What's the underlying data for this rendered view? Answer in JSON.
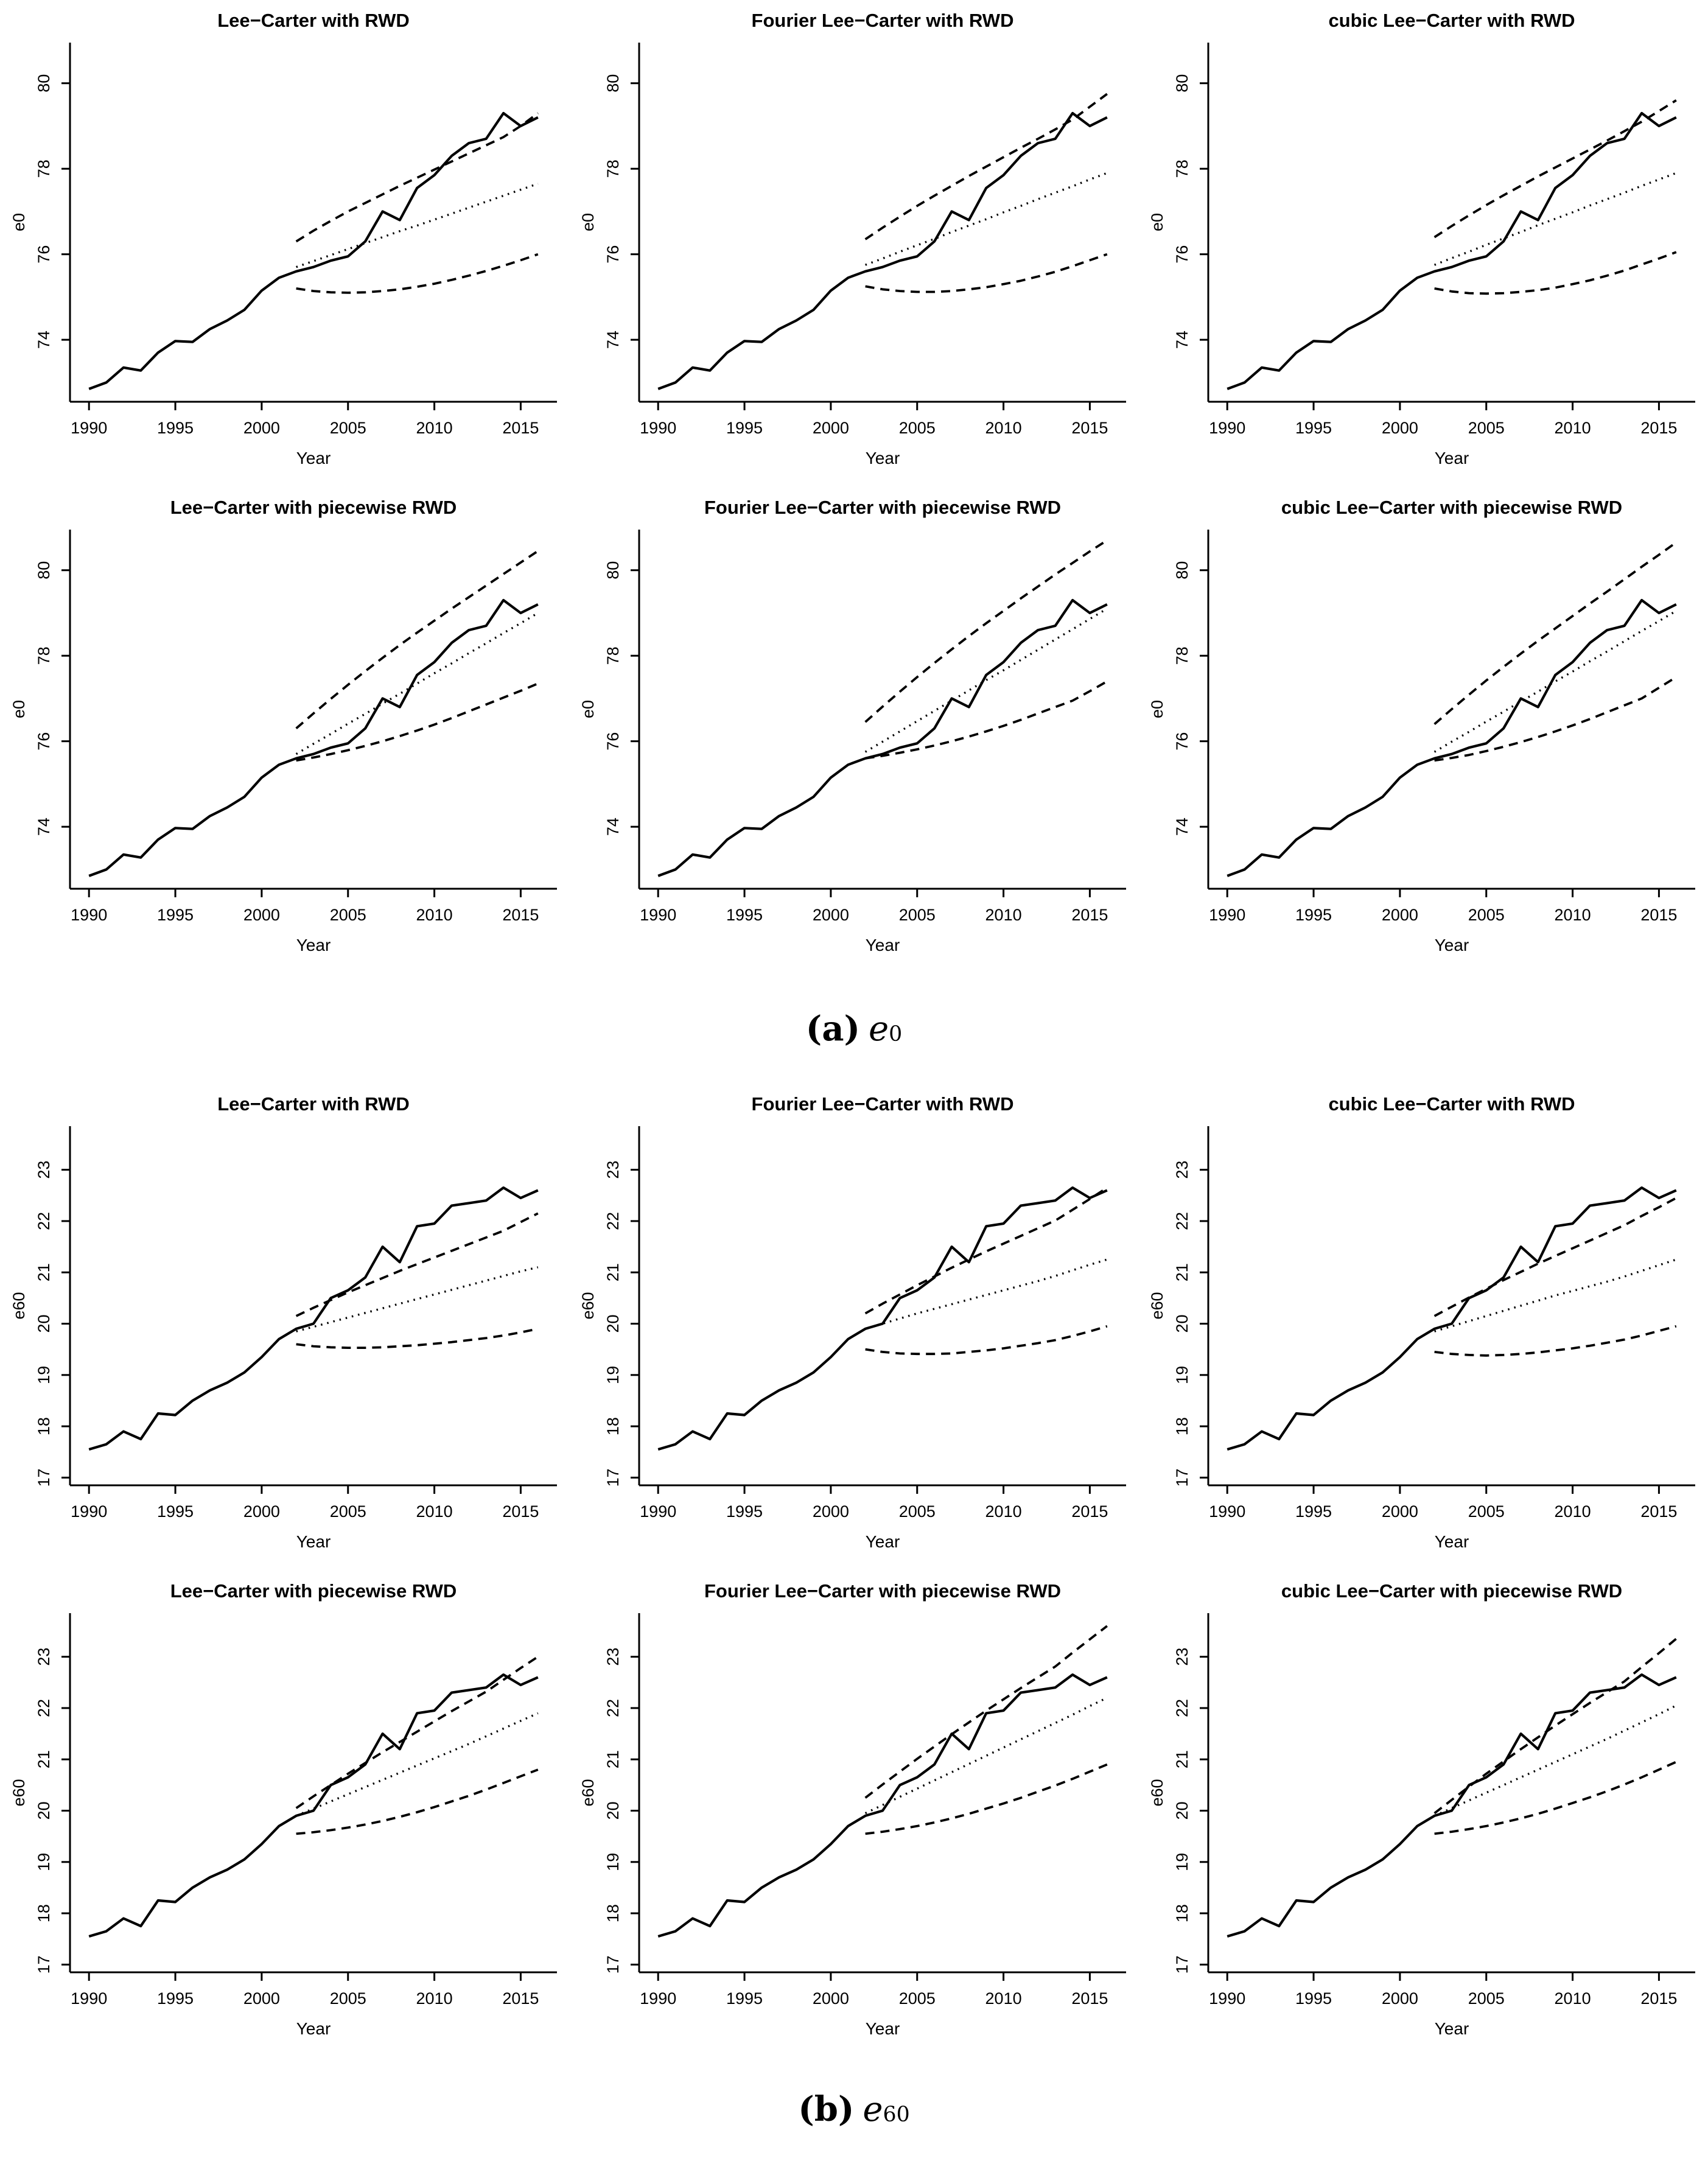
{
  "page": {
    "background": "#ffffff",
    "ink": "#000000"
  },
  "captions": {
    "a": {
      "label": "(a)",
      "symbol": "e",
      "subscript": "0"
    },
    "b": {
      "label": "(b)",
      "symbol": "e",
      "subscript": "60"
    }
  },
  "chart_data": {
    "type": "line",
    "xlabel": "Year",
    "x_ticks": [
      1990,
      1995,
      2000,
      2005,
      2010,
      2015
    ],
    "xlim": [
      1988.9,
      2017.1
    ],
    "grid": "off",
    "legend": "none",
    "line_styles": {
      "observed": "solid",
      "forecast_mean": "dotted",
      "forecast_interval": "dashed"
    },
    "observed_years": [
      1990,
      1991,
      1992,
      1993,
      1994,
      1995,
      1996,
      1997,
      1998,
      1999,
      2000,
      2001,
      2002,
      2003,
      2004,
      2005,
      2006,
      2007,
      2008,
      2009,
      2010,
      2011,
      2012,
      2013,
      2014,
      2015,
      2016
    ],
    "forecast_years": [
      2002,
      2003,
      2004,
      2005,
      2006,
      2007,
      2008,
      2009,
      2010,
      2011,
      2012,
      2013,
      2014,
      2015,
      2016
    ],
    "groups": [
      {
        "name": "e0",
        "ylabel": "e0",
        "ylim": [
          72.55,
          80.95
        ],
        "y_ticks": [
          74,
          76,
          78,
          80
        ],
        "observed": [
          72.85,
          73.0,
          73.35,
          73.28,
          73.7,
          73.97,
          73.95,
          74.25,
          74.45,
          74.7,
          75.15,
          75.45,
          75.6,
          75.7,
          75.85,
          75.95,
          76.3,
          77.0,
          76.8,
          77.55,
          77.85,
          78.3,
          78.6,
          78.7,
          79.3,
          79.0,
          79.2
        ],
        "charts": [
          {
            "title": "Lee−Carter with RWD",
            "forecast_mean": [
              75.7,
              75.84,
              75.98,
              76.12,
              76.26,
              76.4,
              76.54,
              76.67,
              76.81,
              76.95,
              77.09,
              77.23,
              77.37,
              77.51,
              77.65
            ],
            "forecast_upper": [
              76.3,
              76.55,
              76.78,
              77.0,
              77.2,
              77.4,
              77.6,
              77.79,
              77.98,
              78.17,
              78.36,
              78.55,
              78.74,
              79.0,
              79.3
            ],
            "forecast_lower": [
              75.2,
              75.14,
              75.11,
              75.1,
              75.11,
              75.14,
              75.18,
              75.24,
              75.31,
              75.4,
              75.5,
              75.61,
              75.73,
              75.86,
              76.0
            ]
          },
          {
            "title": "Fourier Lee−Carter with RWD",
            "forecast_mean": [
              75.75,
              75.9,
              76.06,
              76.21,
              76.36,
              76.52,
              76.67,
              76.82,
              76.98,
              77.13,
              77.29,
              77.44,
              77.59,
              77.75,
              77.9
            ],
            "forecast_upper": [
              76.35,
              76.62,
              76.88,
              77.13,
              77.37,
              77.6,
              77.83,
              78.05,
              78.27,
              78.49,
              78.7,
              78.92,
              79.15,
              79.45,
              79.75
            ],
            "forecast_lower": [
              75.25,
              75.18,
              75.14,
              75.12,
              75.12,
              75.14,
              75.18,
              75.23,
              75.3,
              75.38,
              75.48,
              75.59,
              75.72,
              75.86,
              76.0
            ]
          },
          {
            "title": "cubic Lee−Carter with RWD",
            "forecast_mean": [
              75.75,
              75.91,
              76.06,
              76.22,
              76.37,
              76.52,
              76.68,
              76.83,
              76.98,
              77.14,
              77.29,
              77.44,
              77.6,
              77.75,
              77.9
            ],
            "forecast_upper": [
              76.4,
              76.66,
              76.91,
              77.15,
              77.38,
              77.6,
              77.82,
              78.03,
              78.24,
              78.45,
              78.66,
              78.88,
              79.1,
              79.35,
              79.6
            ],
            "forecast_lower": [
              75.2,
              75.13,
              75.09,
              75.08,
              75.09,
              75.12,
              75.16,
              75.22,
              75.3,
              75.39,
              75.5,
              75.62,
              75.76,
              75.9,
              76.05
            ]
          },
          {
            "title": "Lee−Carter with piecewise RWD",
            "forecast_mean": [
              75.7,
              75.94,
              76.17,
              76.41,
              76.64,
              76.88,
              77.11,
              77.35,
              77.59,
              77.82,
              78.06,
              78.29,
              78.53,
              78.76,
              79.0
            ],
            "forecast_upper": [
              76.3,
              76.65,
              76.99,
              77.32,
              77.64,
              77.95,
              78.25,
              78.54,
              78.82,
              79.1,
              79.37,
              79.64,
              79.91,
              80.18,
              80.45
            ],
            "forecast_lower": [
              75.55,
              75.62,
              75.7,
              75.79,
              75.89,
              76.0,
              76.12,
              76.25,
              76.39,
              76.54,
              76.7,
              76.86,
              77.02,
              77.18,
              77.35
            ]
          },
          {
            "title": "Fourier Lee−Carter with piecewise RWD",
            "forecast_mean": [
              75.75,
              75.99,
              76.23,
              76.47,
              76.71,
              76.95,
              77.19,
              77.43,
              77.66,
              77.9,
              78.14,
              78.38,
              78.62,
              78.86,
              79.1
            ],
            "forecast_upper": [
              76.45,
              76.81,
              77.16,
              77.5,
              77.83,
              78.15,
              78.46,
              78.76,
              79.05,
              79.34,
              79.62,
              79.9,
              80.17,
              80.44,
              80.7
            ],
            "forecast_lower": [
              75.6,
              75.66,
              75.73,
              75.81,
              75.9,
              76.0,
              76.11,
              76.23,
              76.36,
              76.5,
              76.65,
              76.8,
              76.95,
              77.17,
              77.4
            ]
          },
          {
            "title": "cubic Lee−Carter with piecewise RWD",
            "forecast_mean": [
              75.75,
              75.99,
              76.22,
              76.46,
              76.69,
              76.93,
              77.16,
              77.4,
              77.63,
              77.87,
              78.1,
              78.34,
              78.58,
              78.81,
              79.05
            ],
            "forecast_upper": [
              76.4,
              76.75,
              77.09,
              77.42,
              77.74,
              78.05,
              78.35,
              78.64,
              78.93,
              79.22,
              79.5,
              79.79,
              80.08,
              80.36,
              80.65
            ],
            "forecast_lower": [
              75.55,
              75.61,
              75.68,
              75.77,
              75.87,
              75.98,
              76.1,
              76.23,
              76.37,
              76.52,
              76.68,
              76.84,
              77.0,
              77.25,
              77.5
            ]
          }
        ]
      },
      {
        "name": "e60",
        "ylabel": "e60",
        "ylim": [
          16.85,
          23.85
        ],
        "y_ticks": [
          17,
          18,
          19,
          20,
          21,
          22,
          23
        ],
        "observed": [
          17.55,
          17.65,
          17.9,
          17.75,
          18.25,
          18.22,
          18.5,
          18.7,
          18.85,
          19.05,
          19.35,
          19.7,
          19.9,
          20.0,
          20.5,
          20.65,
          20.9,
          21.5,
          21.2,
          21.9,
          21.95,
          22.3,
          22.35,
          22.4,
          22.65,
          22.45,
          22.6
        ],
        "charts": [
          {
            "title": "Lee−Carter with RWD",
            "forecast_mean": [
              19.85,
              19.94,
              20.03,
              20.12,
              20.21,
              20.3,
              20.39,
              20.48,
              20.57,
              20.66,
              20.75,
              20.84,
              20.93,
              21.02,
              21.1
            ],
            "forecast_upper": [
              20.15,
              20.31,
              20.46,
              20.61,
              20.75,
              20.89,
              21.03,
              21.16,
              21.29,
              21.42,
              21.55,
              21.68,
              21.81,
              21.98,
              22.15
            ],
            "forecast_lower": [
              19.6,
              19.56,
              19.54,
              19.53,
              19.53,
              19.54,
              19.56,
              19.58,
              19.61,
              19.64,
              19.68,
              19.72,
              19.77,
              19.83,
              19.9
            ]
          },
          {
            "title": "Fourier Lee−Carter with RWD",
            "forecast_mean": [
              19.9,
              20.0,
              20.1,
              20.2,
              20.29,
              20.38,
              20.47,
              20.56,
              20.65,
              20.74,
              20.83,
              20.93,
              21.04,
              21.15,
              21.25
            ],
            "forecast_upper": [
              20.2,
              20.39,
              20.57,
              20.75,
              20.92,
              21.09,
              21.25,
              21.41,
              21.56,
              21.71,
              21.86,
              22.01,
              22.22,
              22.43,
              22.65
            ],
            "forecast_lower": [
              19.5,
              19.45,
              19.42,
              19.41,
              19.41,
              19.42,
              19.45,
              19.48,
              19.52,
              19.57,
              19.62,
              19.68,
              19.76,
              19.85,
              19.95
            ]
          },
          {
            "title": "cubic Lee−Carter with RWD",
            "forecast_mean": [
              19.85,
              19.95,
              20.05,
              20.15,
              20.25,
              20.35,
              20.45,
              20.55,
              20.64,
              20.73,
              20.82,
              20.92,
              21.03,
              21.14,
              21.25
            ],
            "forecast_upper": [
              20.15,
              20.33,
              20.51,
              20.68,
              20.85,
              21.01,
              21.17,
              21.32,
              21.47,
              21.62,
              21.77,
              21.92,
              22.1,
              22.27,
              22.45
            ],
            "forecast_lower": [
              19.45,
              19.41,
              19.39,
              19.38,
              19.39,
              19.41,
              19.44,
              19.48,
              19.52,
              19.57,
              19.63,
              19.69,
              19.77,
              19.86,
              19.95
            ]
          },
          {
            "title": "Lee−Carter with piecewise RWD",
            "forecast_mean": [
              19.9,
              20.04,
              20.18,
              20.32,
              20.46,
              20.6,
              20.74,
              20.88,
              21.02,
              21.16,
              21.3,
              21.45,
              21.6,
              21.75,
              21.9
            ],
            "forecast_upper": [
              20.05,
              20.28,
              20.5,
              20.72,
              20.93,
              21.14,
              21.34,
              21.54,
              21.74,
              21.94,
              22.13,
              22.32,
              22.55,
              22.78,
              23.0
            ],
            "forecast_lower": [
              19.55,
              19.58,
              19.62,
              19.67,
              19.73,
              19.8,
              19.88,
              19.97,
              20.07,
              20.18,
              20.29,
              20.41,
              20.54,
              20.67,
              20.8
            ]
          },
          {
            "title": "Fourier Lee−Carter with piecewise RWD",
            "forecast_mean": [
              19.95,
              20.11,
              20.27,
              20.43,
              20.59,
              20.75,
              20.91,
              21.07,
              21.23,
              21.39,
              21.55,
              21.71,
              21.87,
              22.04,
              22.2
            ],
            "forecast_upper": [
              20.25,
              20.51,
              20.76,
              21.01,
              21.25,
              21.49,
              21.72,
              21.95,
              22.17,
              22.39,
              22.6,
              22.81,
              23.08,
              23.34,
              23.6
            ],
            "forecast_lower": [
              19.55,
              19.59,
              19.64,
              19.7,
              19.77,
              19.85,
              19.94,
              20.04,
              20.14,
              20.25,
              20.37,
              20.49,
              20.62,
              20.76,
              20.9
            ]
          },
          {
            "title": "cubic Lee−Carter with piecewise RWD",
            "forecast_mean": [
              19.9,
              20.05,
              20.2,
              20.35,
              20.5,
              20.65,
              20.8,
              20.95,
              21.1,
              21.25,
              21.4,
              21.56,
              21.72,
              21.88,
              22.05
            ],
            "forecast_upper": [
              19.95,
              20.21,
              20.47,
              20.72,
              20.96,
              21.2,
              21.43,
              21.66,
              21.88,
              22.1,
              22.31,
              22.52,
              22.8,
              23.07,
              23.35
            ],
            "forecast_lower": [
              19.55,
              19.59,
              19.64,
              19.7,
              19.77,
              19.85,
              19.94,
              20.04,
              20.15,
              20.26,
              20.38,
              20.51,
              20.65,
              20.8,
              20.95
            ]
          }
        ]
      }
    ]
  }
}
